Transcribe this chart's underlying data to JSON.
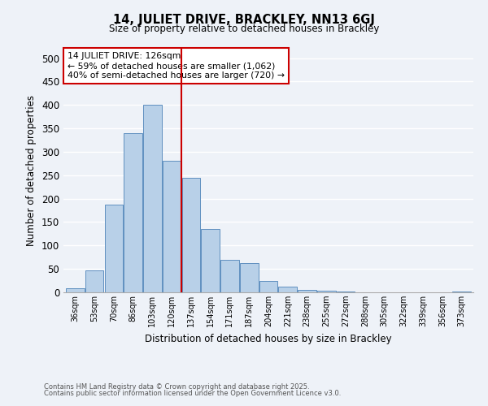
{
  "title": "14, JULIET DRIVE, BRACKLEY, NN13 6GJ",
  "subtitle": "Size of property relative to detached houses in Brackley",
  "xlabel": "Distribution of detached houses by size in Brackley",
  "ylabel": "Number of detached properties",
  "categories": [
    "36sqm",
    "53sqm",
    "70sqm",
    "86sqm",
    "103sqm",
    "120sqm",
    "137sqm",
    "154sqm",
    "171sqm",
    "187sqm",
    "204sqm",
    "221sqm",
    "238sqm",
    "255sqm",
    "272sqm",
    "288sqm",
    "305sqm",
    "322sqm",
    "339sqm",
    "356sqm",
    "373sqm"
  ],
  "values": [
    8,
    46,
    188,
    340,
    400,
    280,
    245,
    135,
    70,
    63,
    25,
    13,
    5,
    3,
    1,
    0,
    0,
    0,
    0,
    0,
    2
  ],
  "bar_color": "#b8d0e8",
  "bar_edge_color": "#6090c0",
  "vline_x_index": 5,
  "vline_color": "#cc0000",
  "ylim": [
    0,
    520
  ],
  "yticks": [
    0,
    50,
    100,
    150,
    200,
    250,
    300,
    350,
    400,
    450,
    500
  ],
  "annotation_text": "14 JULIET DRIVE: 126sqm\n← 59% of detached houses are smaller (1,062)\n40% of semi-detached houses are larger (720) →",
  "annotation_box_color": "#ffffff",
  "annotation_box_edge_color": "#cc0000",
  "footer_line1": "Contains HM Land Registry data © Crown copyright and database right 2025.",
  "footer_line2": "Contains public sector information licensed under the Open Government Licence v3.0.",
  "background_color": "#eef2f8",
  "grid_color": "#ffffff"
}
